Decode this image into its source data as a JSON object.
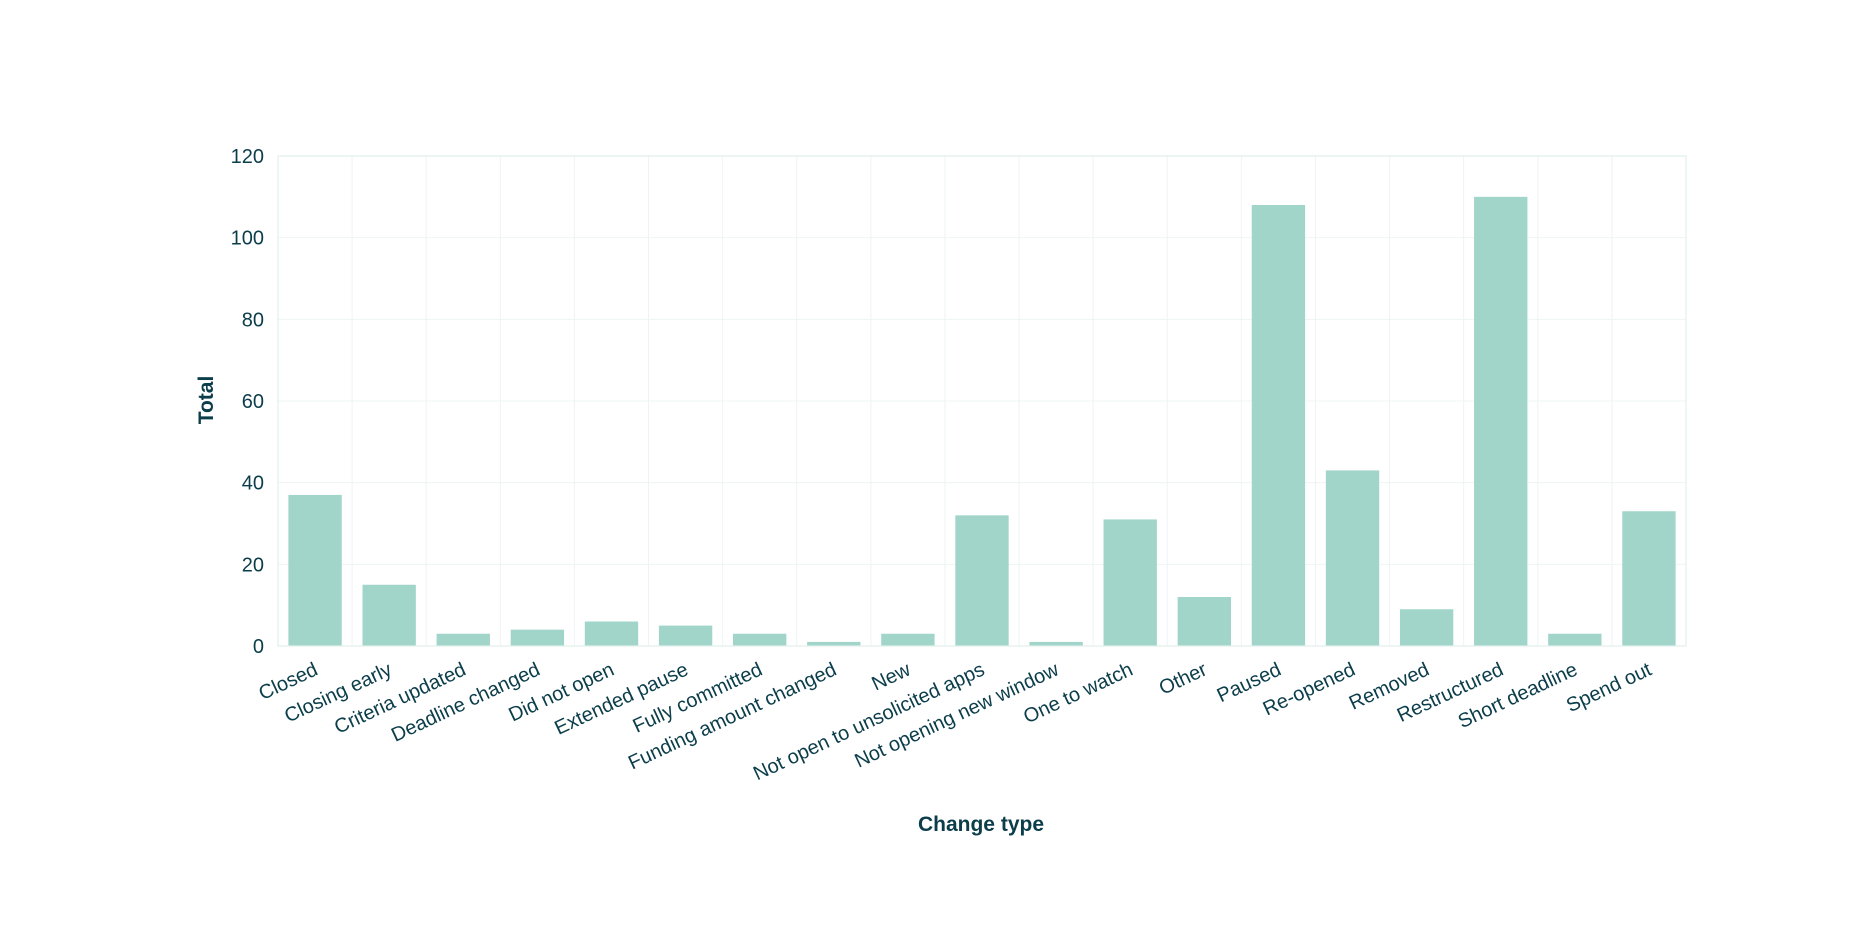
{
  "chart_data": {
    "type": "bar",
    "categories": [
      "Closed",
      "Closing early",
      "Criteria updated",
      "Deadline changed",
      "Did not open",
      "Extended pause",
      "Fully committed",
      "Funding amount changed",
      "New",
      "Not open to unsolicited apps",
      "Not opening new window",
      "One to watch",
      "Other",
      "Paused",
      "Re-opened",
      "Removed",
      "Restructured",
      "Short deadline",
      "Spend out"
    ],
    "values": [
      37,
      15,
      3,
      4,
      6,
      5,
      3,
      1,
      3,
      32,
      1,
      31,
      12,
      108,
      43,
      9,
      110,
      3,
      33
    ],
    "xlabel": "Change type",
    "ylabel": "Total",
    "ylim": [
      0,
      120
    ],
    "yticks": [
      "0",
      "20",
      "40",
      "60",
      "80",
      "100",
      "120"
    ],
    "grid": true,
    "bar_color": "#a2d5c9",
    "text_color": "#0b3d4a"
  }
}
